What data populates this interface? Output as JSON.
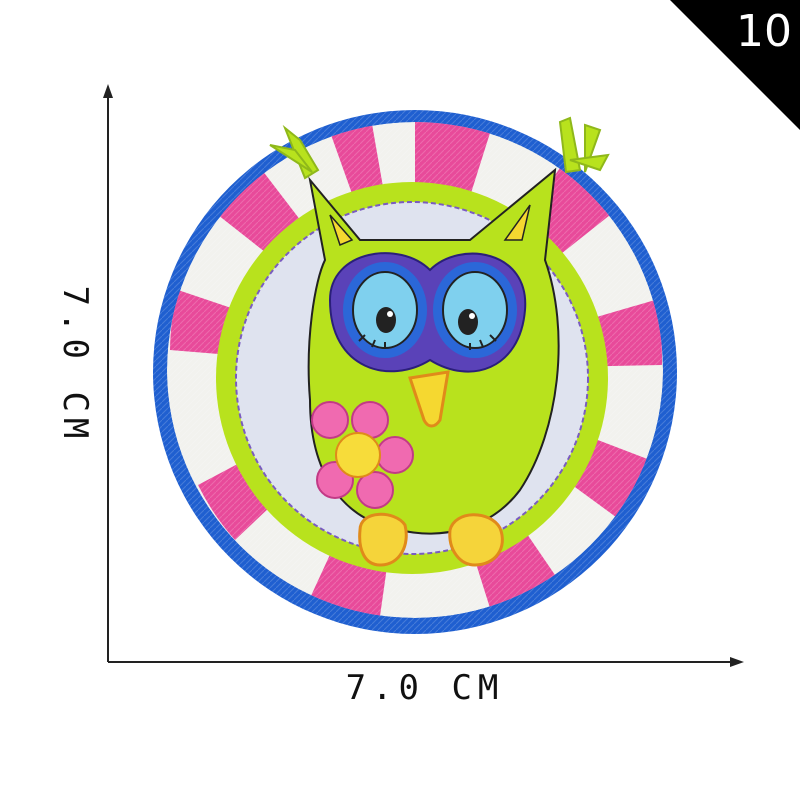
{
  "badge": {
    "number": "10",
    "background_color": "#000000"
  },
  "dimensions": {
    "width_label": "7.0 CM",
    "height_label": "7.0 CM"
  },
  "patch": {
    "subject": "owl-embroidered-patch",
    "colors": {
      "border": "#1f5fd0",
      "ring_pink": "#e84a9a",
      "ring_white": "#f2f2ee",
      "lime": "#b8e21d",
      "inner_disc": "#dfe3ef",
      "eye_ring": "#5a42b8",
      "eye_blue": "#7fd0ee",
      "beak": "#f5d830",
      "flower": "#f06ab0",
      "flower_center": "#f7dc3a",
      "feet": "#f5d43a"
    }
  }
}
